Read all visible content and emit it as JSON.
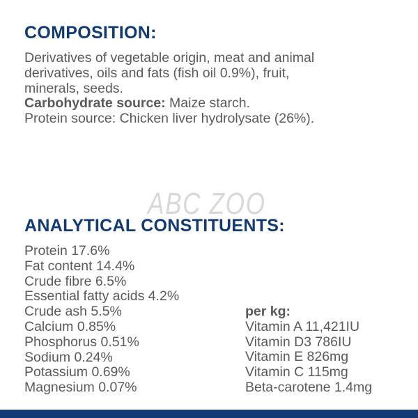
{
  "watermark": "ABC ZOO",
  "composition": {
    "heading": "COMPOSITION:",
    "lines": [
      "Derivatives of vegetable origin, meat and animal",
      "derivatives, oils and fats (fish oil 0.9%), fruit,",
      "minerals, seeds."
    ],
    "carb_label": "Carbohydrate source:",
    "carb_value": " Maize starch.",
    "protein_source": "Protein source: Chicken liver hydrolysate (26%)."
  },
  "analytical": {
    "heading": "ANALYTICAL CONSTITUENTS:",
    "items": [
      "Protein 17.6%",
      "Fat content 14.4%",
      "Crude fibre 6.5%",
      "Essential fatty acids 4.2%",
      "Crude ash 5.5%",
      "Calcium 0.85%",
      "Phosphorus 0.51%",
      "Sodium 0.24%",
      "Potassium 0.69%",
      "Magnesium 0.07%"
    ],
    "per_kg_label": "per kg:",
    "per_kg_items": [
      "Vitamin A 11,421IU",
      "Vitamin D3 786IU",
      "Vitamin E 826mg",
      "Vitamin C 115mg",
      "Beta-carotene 1.4mg"
    ]
  },
  "colors": {
    "heading": "#143b6f",
    "text": "#5a5a5c",
    "bottom_bar": "#133a74"
  }
}
